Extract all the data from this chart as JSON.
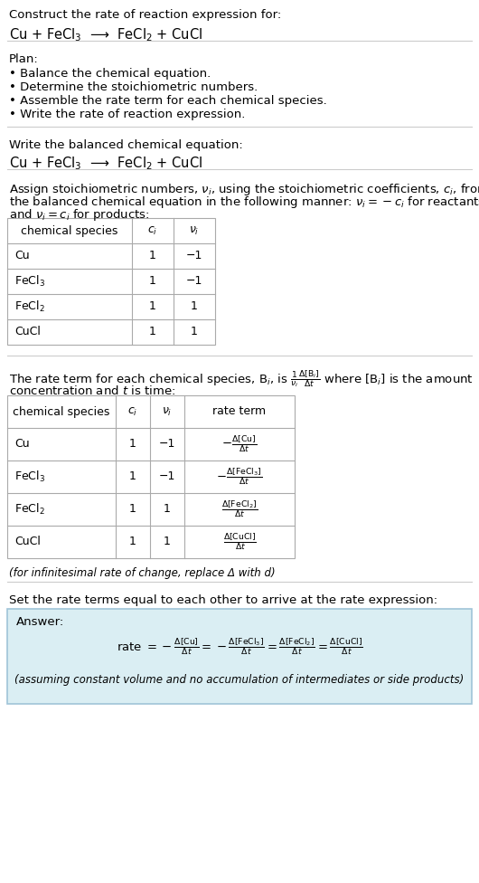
{
  "bg_color": "#ffffff",
  "text_color": "#000000",
  "title_line1": "Construct the rate of reaction expression for:",
  "title_line2": "Cu + FeCl$_3$  ⟶  FeCl$_2$ + CuCl",
  "plan_header": "Plan:",
  "plan_items": [
    "• Balance the chemical equation.",
    "• Determine the stoichiometric numbers.",
    "• Assemble the rate term for each chemical species.",
    "• Write the rate of reaction expression."
  ],
  "section2_header": "Write the balanced chemical equation:",
  "section2_eq": "Cu + FeCl$_3$  ⟶  FeCl$_2$ + CuCl",
  "section3_line1": "Assign stoichiometric numbers, $\\nu_i$, using the stoichiometric coefficients, $c_i$, from",
  "section3_line2": "the balanced chemical equation in the following manner: $\\nu_i = -c_i$ for reactants",
  "section3_line3": "and $\\nu_i = c_i$ for products:",
  "table1_headers": [
    "chemical species",
    "$c_i$",
    "$\\nu_i$"
  ],
  "table1_rows": [
    [
      "Cu",
      "1",
      "−1"
    ],
    [
      "FeCl$_3$",
      "1",
      "−1"
    ],
    [
      "FeCl$_2$",
      "1",
      "1"
    ],
    [
      "CuCl",
      "1",
      "1"
    ]
  ],
  "section4_line1": "The rate term for each chemical species, B$_i$, is $\\frac{1}{\\nu_i}\\frac{\\Delta[\\mathrm{B}_i]}{\\Delta t}$ where [B$_i$] is the amount",
  "section4_line2": "concentration and $t$ is time:",
  "table2_headers": [
    "chemical species",
    "$c_i$",
    "$\\nu_i$",
    "rate term"
  ],
  "table2_rows": [
    [
      "Cu",
      "1",
      "−1",
      "$-\\frac{\\Delta[\\mathrm{Cu}]}{\\Delta t}$"
    ],
    [
      "FeCl$_3$",
      "1",
      "−1",
      "$-\\frac{\\Delta[\\mathrm{FeCl}_3]}{\\Delta t}$"
    ],
    [
      "FeCl$_2$",
      "1",
      "1",
      "$\\frac{\\Delta[\\mathrm{FeCl}_2]}{\\Delta t}$"
    ],
    [
      "CuCl",
      "1",
      "1",
      "$\\frac{\\Delta[\\mathrm{CuCl}]}{\\Delta t}$"
    ]
  ],
  "infinitesimal_note": "(for infinitesimal rate of change, replace Δ with d)",
  "section5_header": "Set the rate terms equal to each other to arrive at the rate expression:",
  "answer_bg": "#daeef3",
  "answer_border": "#a0c4d8",
  "answer_label": "Answer:",
  "answer_note": "(assuming constant volume and no accumulation of intermediates or side products)"
}
